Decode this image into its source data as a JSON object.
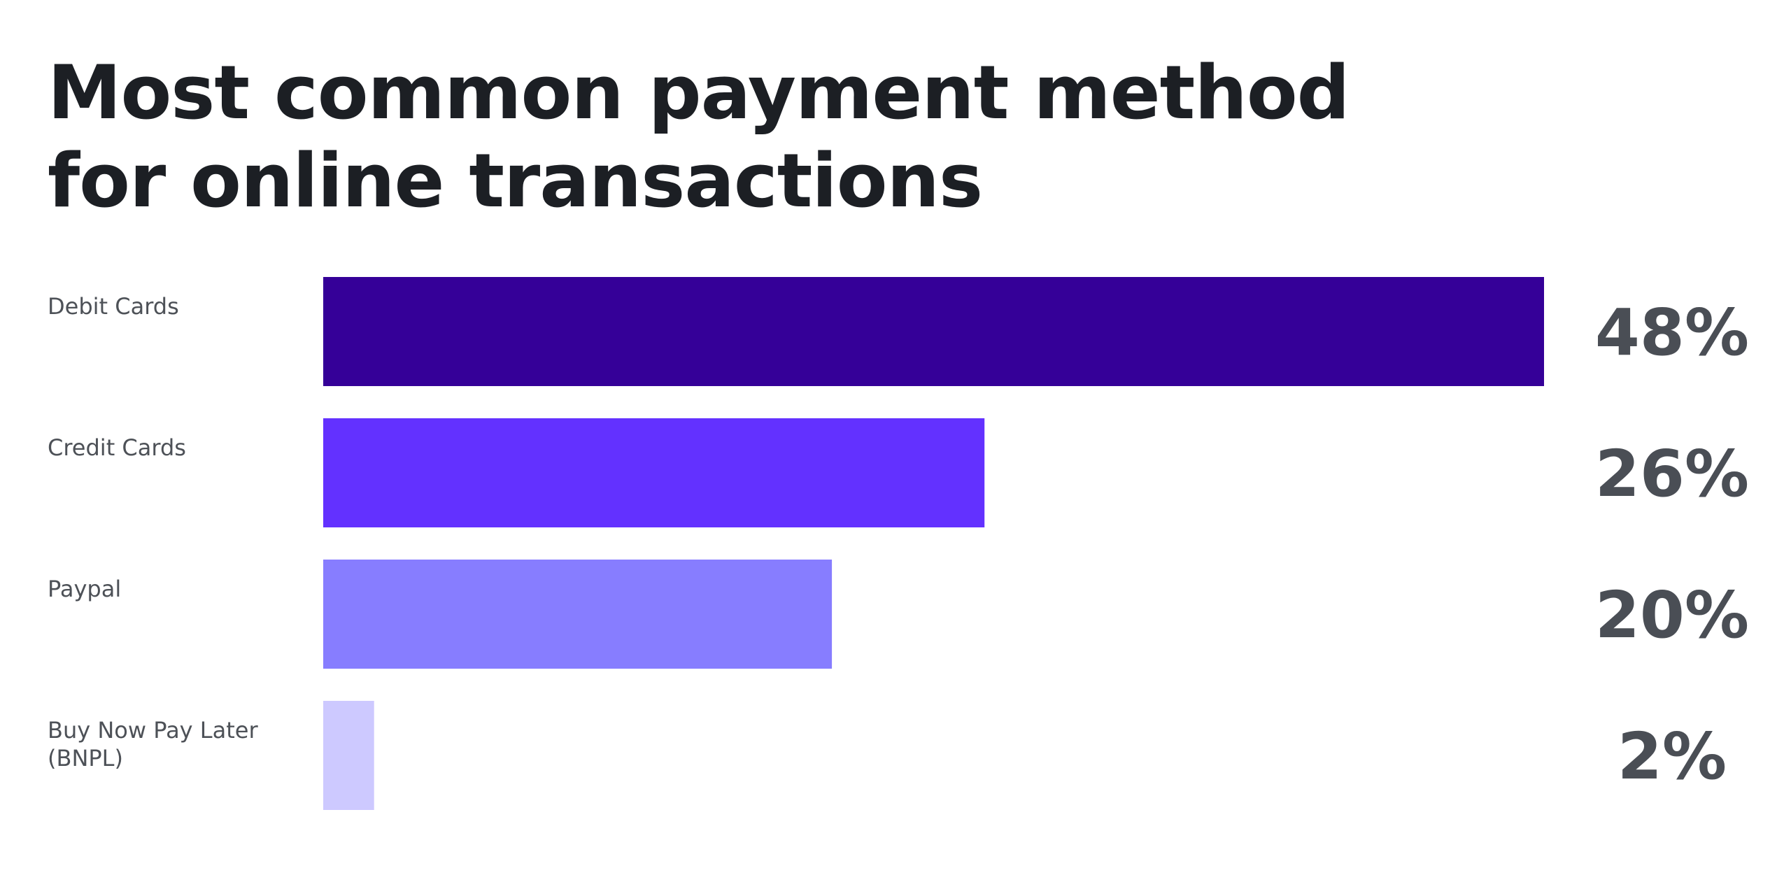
{
  "chart_data": {
    "type": "bar",
    "orientation": "horizontal",
    "title": "Most common payment method for online transactions",
    "categories": [
      [
        "Debit Cards"
      ],
      [
        "Credit Cards"
      ],
      [
        "Paypal"
      ],
      [
        "Buy Now Pay Later",
        "(BNPL)"
      ]
    ],
    "values": [
      48,
      26,
      20,
      2
    ],
    "value_labels": [
      "48%",
      "26%",
      "20%",
      "2%"
    ],
    "colors": [
      "#350098",
      "#6331ff",
      "#877dff",
      "#cdc9ff"
    ],
    "xlim": [
      0,
      48
    ],
    "grid": false,
    "legend": "none"
  }
}
